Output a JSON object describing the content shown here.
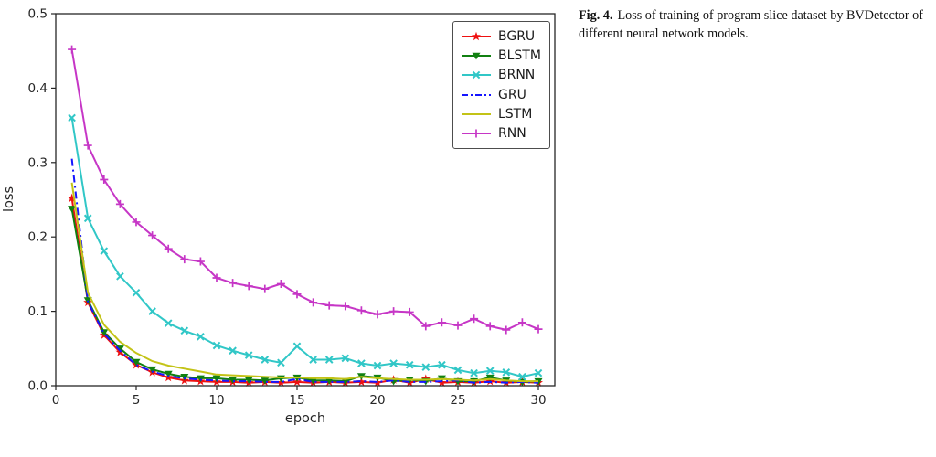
{
  "figure": {
    "caption_label": "Fig. 4.",
    "caption_text": "Loss of training of program slice dataset by BVDetector of different neural network models."
  },
  "chart_data": {
    "type": "line",
    "title": "",
    "xlabel": "epoch",
    "ylabel": "loss",
    "xlim": [
      0,
      31
    ],
    "ylim": [
      0,
      0.5
    ],
    "xticks": [
      0,
      5,
      10,
      15,
      20,
      25,
      30
    ],
    "yticks": [
      0.0,
      0.1,
      0.2,
      0.3,
      0.4,
      0.5
    ],
    "grid": false,
    "legend_position": "upper right",
    "x": [
      1,
      2,
      3,
      4,
      5,
      6,
      7,
      8,
      9,
      10,
      11,
      12,
      13,
      14,
      15,
      16,
      17,
      18,
      19,
      20,
      21,
      22,
      23,
      24,
      25,
      26,
      27,
      28,
      29,
      30
    ],
    "series": [
      {
        "name": "BGRU",
        "color": "#ee1111",
        "marker": "star",
        "line": "solid",
        "values": [
          0.252,
          0.112,
          0.068,
          0.045,
          0.028,
          0.018,
          0.011,
          0.007,
          0.006,
          0.005,
          0.005,
          0.004,
          0.005,
          0.004,
          0.005,
          0.004,
          0.005,
          0.004,
          0.005,
          0.004,
          0.008,
          0.004,
          0.009,
          0.004,
          0.005,
          0.004,
          0.006,
          0.004,
          0.005,
          0.004
        ]
      },
      {
        "name": "BLSTM",
        "color": "#118011",
        "marker": "triangle-down",
        "line": "solid",
        "values": [
          0.238,
          0.115,
          0.072,
          0.05,
          0.032,
          0.022,
          0.016,
          0.012,
          0.01,
          0.01,
          0.008,
          0.008,
          0.007,
          0.01,
          0.011,
          0.007,
          0.007,
          0.006,
          0.013,
          0.011,
          0.006,
          0.008,
          0.006,
          0.01,
          0.006,
          0.006,
          0.011,
          0.007,
          0.005,
          0.006
        ]
      },
      {
        "name": "BRNN",
        "color": "#31c7c7",
        "marker": "x",
        "line": "solid",
        "values": [
          0.36,
          0.225,
          0.181,
          0.147,
          0.125,
          0.1,
          0.084,
          0.074,
          0.066,
          0.054,
          0.047,
          0.041,
          0.035,
          0.031,
          0.053,
          0.035,
          0.035,
          0.037,
          0.03,
          0.027,
          0.03,
          0.028,
          0.025,
          0.028,
          0.021,
          0.017,
          0.02,
          0.018,
          0.012,
          0.017
        ]
      },
      {
        "name": "GRU",
        "color": "#1515ff",
        "marker": "none",
        "line": "dashdot",
        "values": [
          0.305,
          0.113,
          0.07,
          0.047,
          0.028,
          0.019,
          0.013,
          0.01,
          0.008,
          0.007,
          0.006,
          0.006,
          0.005,
          0.005,
          0.009,
          0.005,
          0.005,
          0.005,
          0.006,
          0.005,
          0.007,
          0.005,
          0.005,
          0.006,
          0.007,
          0.004,
          0.005,
          0.004,
          0.005,
          0.004
        ]
      },
      {
        "name": "LSTM",
        "color": "#c3c317",
        "marker": "none",
        "line": "solid",
        "values": [
          0.273,
          0.125,
          0.082,
          0.059,
          0.044,
          0.033,
          0.027,
          0.023,
          0.019,
          0.015,
          0.014,
          0.013,
          0.012,
          0.011,
          0.011,
          0.01,
          0.01,
          0.009,
          0.012,
          0.01,
          0.009,
          0.008,
          0.008,
          0.009,
          0.008,
          0.007,
          0.009,
          0.007,
          0.006,
          0.006
        ]
      },
      {
        "name": "RNN",
        "color": "#c636c6",
        "marker": "plus",
        "line": "solid",
        "values": [
          0.452,
          0.323,
          0.277,
          0.244,
          0.22,
          0.202,
          0.184,
          0.17,
          0.167,
          0.145,
          0.138,
          0.134,
          0.13,
          0.137,
          0.123,
          0.112,
          0.108,
          0.107,
          0.101,
          0.096,
          0.1,
          0.099,
          0.08,
          0.085,
          0.081,
          0.09,
          0.08,
          0.075,
          0.085,
          0.076
        ]
      }
    ]
  }
}
